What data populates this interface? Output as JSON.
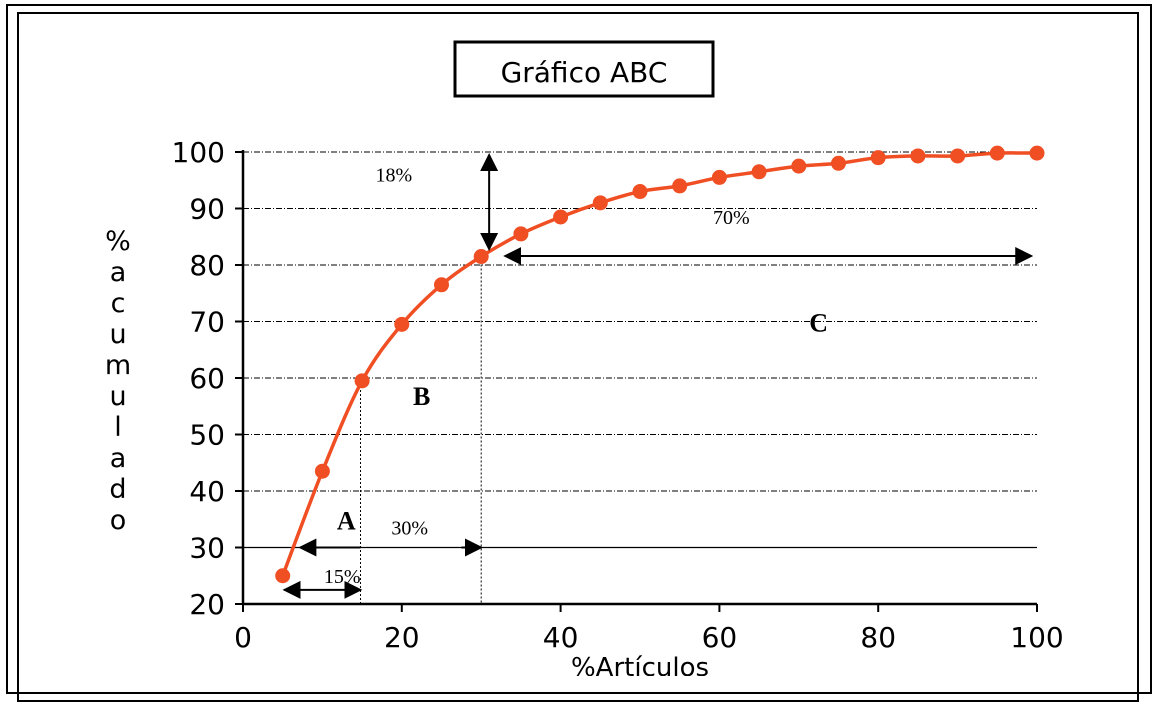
{
  "chart_data": {
    "type": "line",
    "title": "Gráfico  ABC",
    "xlabel": "%Artículos",
    "ylabel_letters": [
      "%",
      "a",
      "c",
      "u",
      "m",
      "u",
      "l",
      "a",
      "d",
      "o"
    ],
    "xlim": [
      0,
      100
    ],
    "ylim": [
      20,
      100
    ],
    "x_ticks": [
      0,
      20,
      40,
      60,
      80,
      100
    ],
    "x_tick_labels": [
      "0",
      "20",
      "40",
      "60",
      "80",
      "100"
    ],
    "y_ticks": [
      20,
      30,
      40,
      50,
      60,
      70,
      80,
      90,
      100
    ],
    "y_tick_labels": [
      "20",
      "30",
      "40",
      "50",
      "60",
      "70",
      "80",
      "90",
      "100"
    ],
    "grid": "horizontal",
    "series": [
      {
        "color": "#f04e23",
        "x": [
          5,
          10,
          15,
          20,
          25,
          30,
          35,
          40,
          45,
          50,
          55,
          60,
          65,
          70,
          75,
          80,
          85,
          90,
          95,
          100
        ],
        "y": [
          25,
          43.5,
          59.5,
          69.5,
          76.5,
          81.5,
          85.5,
          88.5,
          91,
          93,
          94,
          95.5,
          96.5,
          97.5,
          98,
          99,
          99.3,
          99.3,
          99.8,
          99.8
        ]
      }
    ],
    "zone_labels": [
      {
        "text": "A",
        "x": 13,
        "y": 35
      },
      {
        "text": "B",
        "x": 22.5,
        "y": 57
      },
      {
        "text": "C",
        "x": 72.5,
        "y": 70
      }
    ],
    "annotations": [
      {
        "text": "18%",
        "x": 19,
        "y": 96
      },
      {
        "text": "70%",
        "x": 61.5,
        "y": 88.5
      },
      {
        "text": "30%",
        "x": 21,
        "y": 33.5
      },
      {
        "text": "15%",
        "x": 12.5,
        "y": 25
      }
    ],
    "reference_lines": {
      "dotted_vertical_x": [
        14.8,
        30
      ],
      "solid_horizontal_y": 30
    }
  }
}
